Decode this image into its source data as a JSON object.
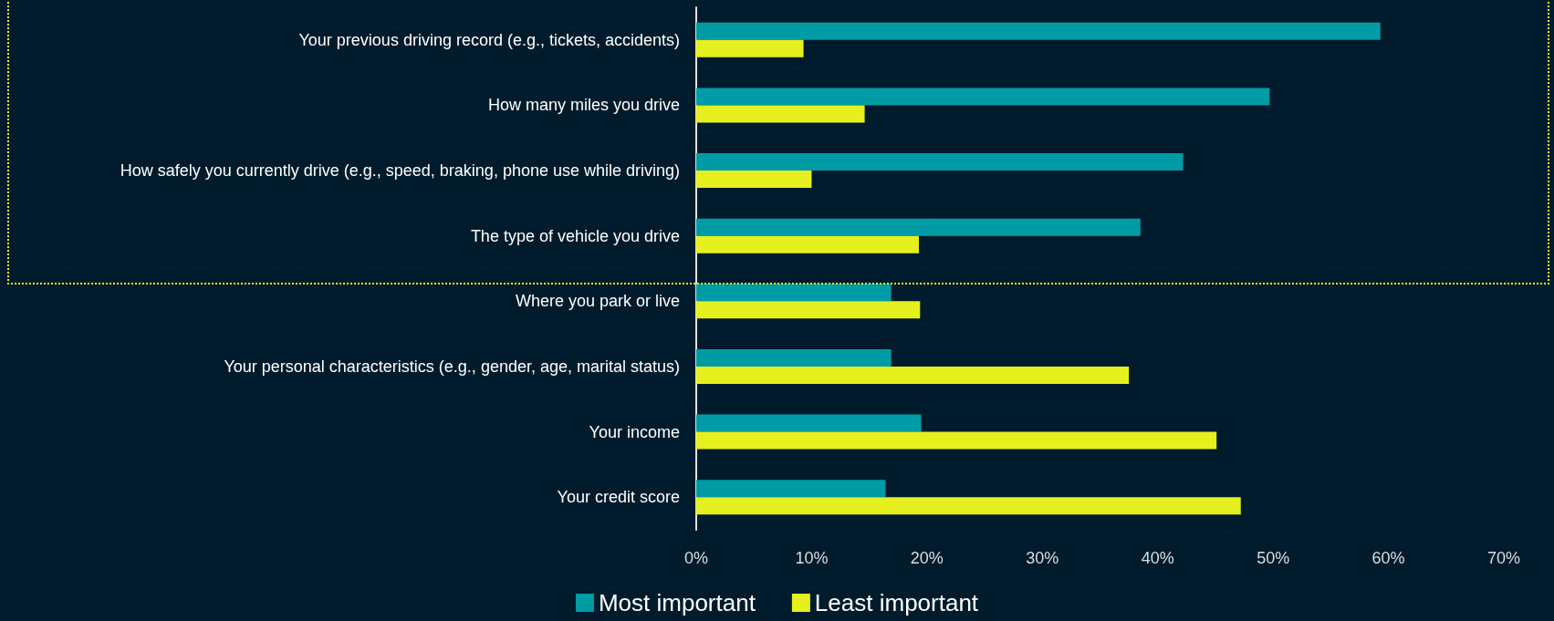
{
  "chart_data": {
    "type": "bar",
    "orientation": "horizontal",
    "categories": [
      "Your previous driving record (e.g., tickets, accidents)",
      "How many miles you drive",
      "How safely you currently drive (e.g., speed, braking, phone use while driving)",
      "The type of vehicle you drive",
      "Where you park or live",
      "Your personal characteristics (e.g., gender, age, marital status)",
      "Your income",
      "Your credit score"
    ],
    "series": [
      {
        "name": "Most important",
        "color": "#009ca6",
        "values": [
          59.3,
          49.7,
          42.2,
          38.5,
          16.9,
          16.9,
          19.5,
          16.4
        ]
      },
      {
        "name": "Least important",
        "color": "#e5f01e",
        "values": [
          9.3,
          14.6,
          10.0,
          19.3,
          19.4,
          37.5,
          45.1,
          47.2
        ]
      }
    ],
    "xlim": [
      0,
      70
    ],
    "xticks": [
      {
        "value": 0,
        "label": "0%"
      },
      {
        "value": 10,
        "label": "10%"
      },
      {
        "value": 20,
        "label": "20%"
      },
      {
        "value": 30,
        "label": "30%"
      },
      {
        "value": 40,
        "label": "40%"
      },
      {
        "value": 50,
        "label": "50%"
      },
      {
        "value": 60,
        "label": "60%"
      },
      {
        "value": 70,
        "label": "70%"
      }
    ],
    "grid": false,
    "legend": "bottom"
  }
}
